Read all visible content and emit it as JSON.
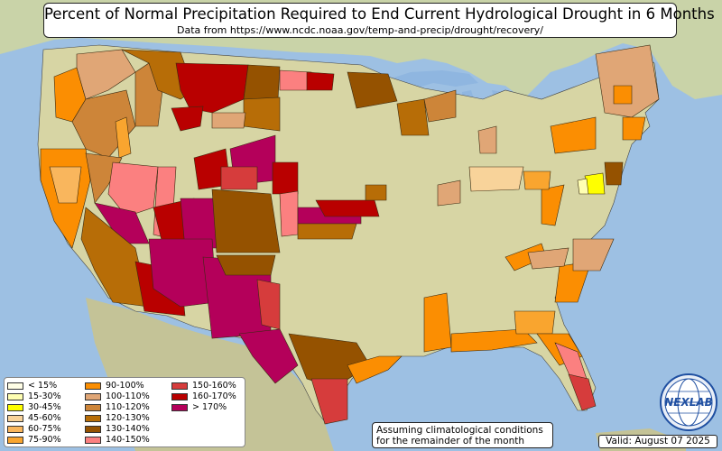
{
  "title": "Percent of Normal Precipitation Required to End Current Hydrological Drought in 6 Months",
  "subtitle": "Data from https://www.ncdc.noaa.gov/temp-and-precip/drought/recovery/",
  "legend": [
    {
      "label": "< 15%",
      "color": "#fffee6"
    },
    {
      "label": "15-30%",
      "color": "#ffffb2"
    },
    {
      "label": "30-45%",
      "color": "#ffff00"
    },
    {
      "label": "45-60%",
      "color": "#f8d39a"
    },
    {
      "label": "60-75%",
      "color": "#f9b65d"
    },
    {
      "label": "75-90%",
      "color": "#f9a52f"
    },
    {
      "label": "90-100%",
      "color": "#fb8e02"
    },
    {
      "label": "100-110%",
      "color": "#e0a676"
    },
    {
      "label": "110-120%",
      "color": "#cd8539"
    },
    {
      "label": "120-130%",
      "color": "#b76d07"
    },
    {
      "label": "130-140%",
      "color": "#955200"
    },
    {
      "label": "140-150%",
      "color": "#fb8080"
    },
    {
      "label": "150-160%",
      "color": "#d63c3c"
    },
    {
      "label": "160-170%",
      "color": "#b90000"
    },
    {
      "label": "> 170%",
      "color": "#b4005a"
    }
  ],
  "note": [
    "Assuming climatological conditions",
    "for the remainder of the month"
  ],
  "valid": "Valid: August 07 2025",
  "logo": {
    "icon": "nexlab-globe-logo",
    "text": "NEXLAB"
  }
}
